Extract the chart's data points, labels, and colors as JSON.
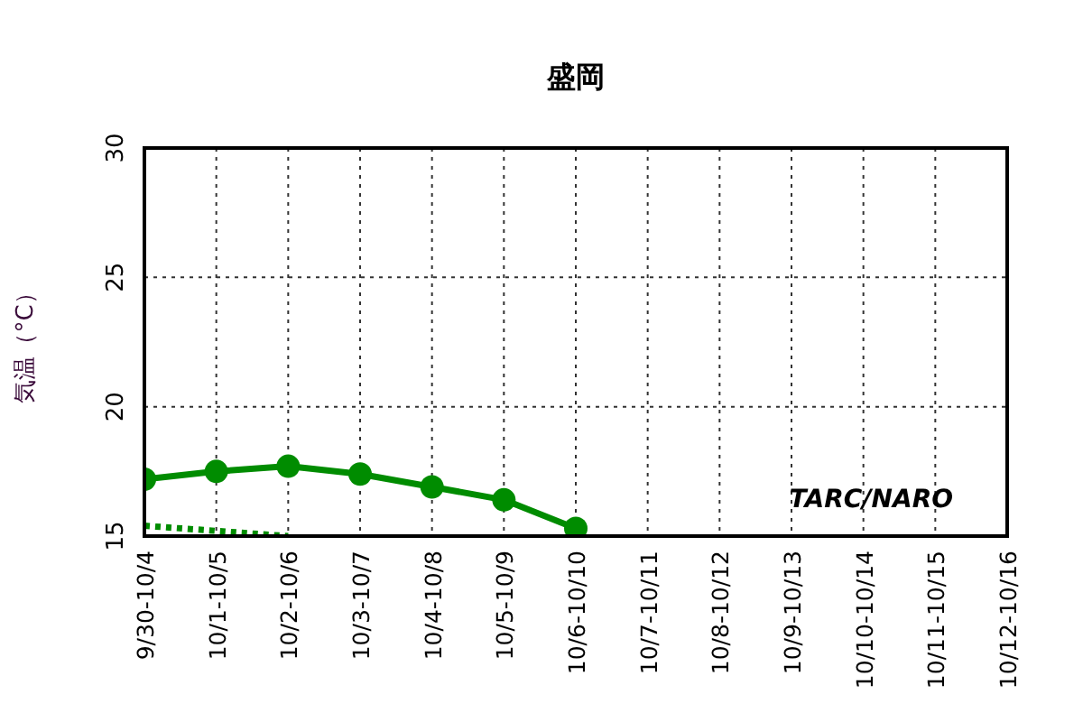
{
  "chart_data": {
    "type": "line",
    "title": "盛岡",
    "ylabel": "気温（°C）",
    "categories": [
      "9/30-10/4",
      "10/1-10/5",
      "10/2-10/6",
      "10/3-10/7",
      "10/4-10/8",
      "10/5-10/9",
      "10/6-10/10",
      "10/7-10/11",
      "10/8-10/12",
      "10/9-10/13",
      "10/10-10/14",
      "10/11-10/15",
      "10/12-10/16"
    ],
    "series": [
      {
        "color": "#008c00",
        "marker": "circle",
        "line_style": "solid",
        "values": [
          17.2,
          17.5,
          17.7,
          17.4,
          16.9,
          16.4,
          15.3,
          null,
          null,
          null,
          null,
          null,
          null
        ]
      },
      {
        "color": "#008c00",
        "marker": "none",
        "line_style": "dotted",
        "values": [
          15.4,
          15.2,
          15.0,
          null,
          null,
          null,
          null,
          null,
          null,
          null,
          null,
          null,
          null
        ]
      }
    ],
    "ylim": [
      15,
      30
    ],
    "yticks": [
      15,
      20,
      25,
      30
    ],
    "grid": true,
    "annotations": [
      "TARC/NARO"
    ]
  }
}
